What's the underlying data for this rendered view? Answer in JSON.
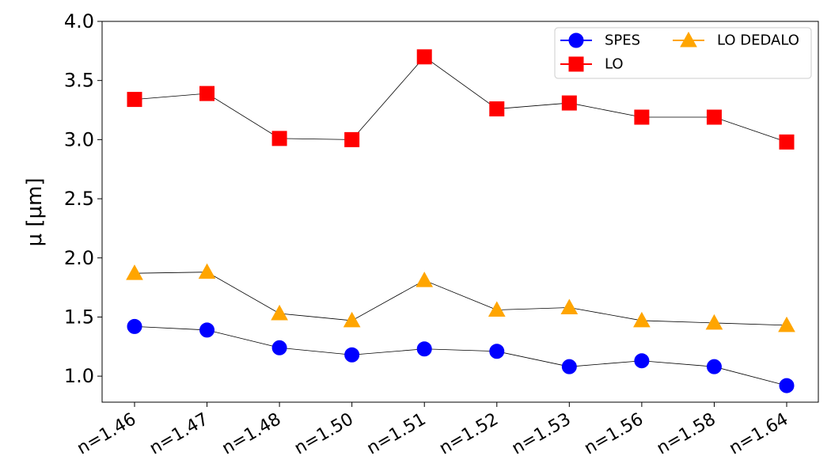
{
  "chart_data": {
    "type": "line",
    "title": "",
    "xlabel": "",
    "ylabel": "μ [μm]",
    "ylim": [
      0.78,
      4.0
    ],
    "yticks": [
      "1.0",
      "1.5",
      "2.0",
      "2.5",
      "3.0",
      "3.5",
      "4.0"
    ],
    "ytick_values": [
      1.0,
      1.5,
      2.0,
      2.5,
      3.0,
      3.5,
      4.0
    ],
    "categories": [
      "n=1.46",
      "n=1.47",
      "n=1.48",
      "n=1.50",
      "n=1.51",
      "n=1.52",
      "n=1.53",
      "n=1.56",
      "n=1.58",
      "n=1.64"
    ],
    "legend_position": "top-right",
    "series": [
      {
        "name": "SPES",
        "marker": "circle",
        "color": "#0000ff",
        "values": [
          1.42,
          1.39,
          1.24,
          1.18,
          1.23,
          1.21,
          1.08,
          1.13,
          1.08,
          0.92
        ]
      },
      {
        "name": "LO",
        "marker": "square",
        "color": "#ff0000",
        "values": [
          3.34,
          3.39,
          3.01,
          3.0,
          3.7,
          3.26,
          3.31,
          3.19,
          3.19,
          2.98
        ]
      },
      {
        "name": "LO DEDALO",
        "marker": "triangle",
        "color": "#ffa500",
        "values": [
          1.87,
          1.88,
          1.53,
          1.47,
          1.81,
          1.56,
          1.58,
          1.47,
          1.45,
          1.43
        ]
      }
    ]
  }
}
